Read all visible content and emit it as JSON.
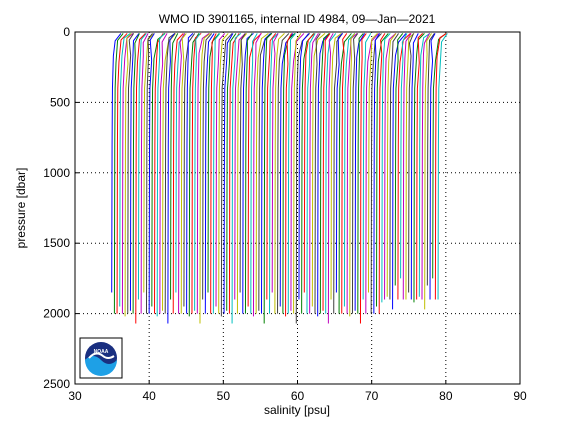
{
  "chart_data": {
    "type": "line",
    "title": "WMO ID 3901165, internal ID 4984, 09—Jan—2021",
    "xlabel": "salinity [psu]",
    "ylabel": "pressure [dbar]",
    "xlim": [
      30,
      90
    ],
    "ylim": [
      0,
      2500
    ],
    "y_reversed": true,
    "xticks": [
      "30",
      "40",
      "50",
      "60",
      "70",
      "80",
      "90"
    ],
    "yticks": [
      "0",
      "500",
      "1000",
      "1500",
      "2000",
      "2500"
    ],
    "grid": "dotted",
    "profiles": {
      "count": 123,
      "first_offset_psu": 35.0,
      "last_offset_psu": 79.0,
      "surface_pressure": 10,
      "typical_bottom_pressure": 2000,
      "description_values": "each profile is salinity vs pressure, horizontally offset by ~0.36 psu per profile; most reach ~2000 dbar",
      "bottom_pressures_sample": [
        1850,
        2000,
        2000,
        1950,
        2000,
        2020,
        2000,
        1980,
        2000,
        2070,
        1900,
        2000
      ]
    },
    "colors": [
      "#0000ff",
      "#008000",
      "#ff0000",
      "#00bfbf",
      "#bf00bf",
      "#bfbf00",
      "#404040"
    ]
  },
  "logo": {
    "icon": "noaa-logo-icon",
    "text": "NOAA"
  }
}
